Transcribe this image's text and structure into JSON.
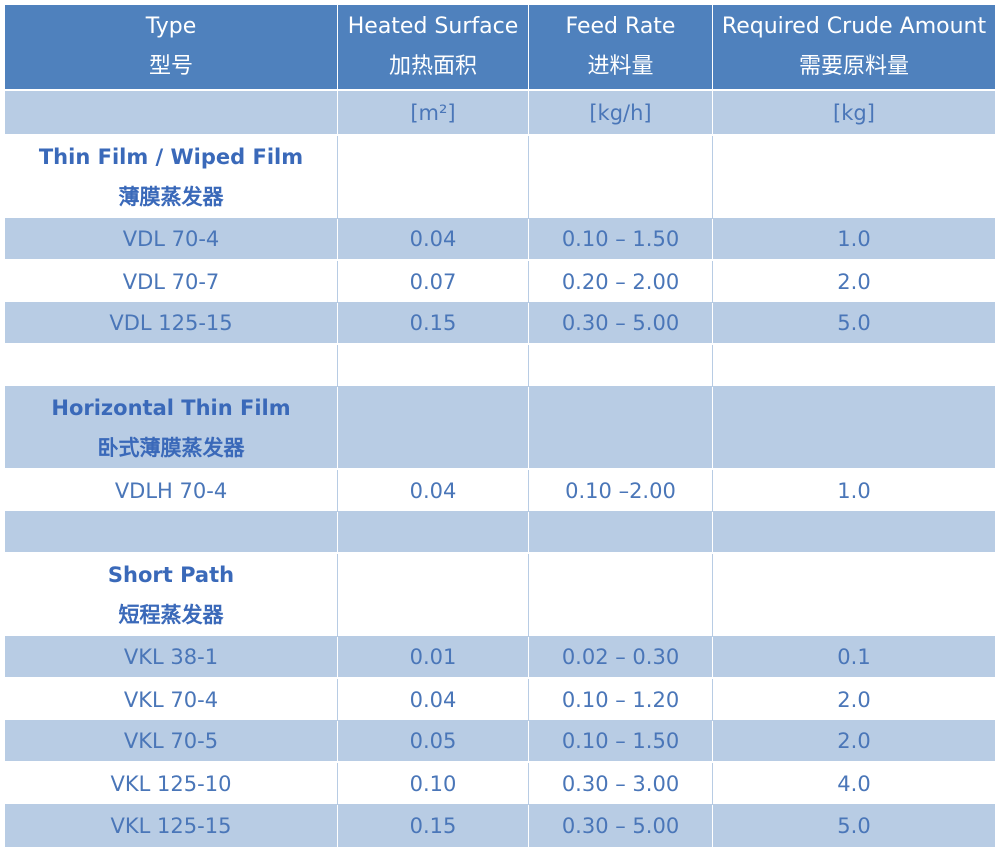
{
  "header": {
    "type_en": "Type",
    "type_zh": "型号",
    "surface_en": "Heated Surface",
    "surface_zh": "加热面积",
    "feed_en": "Feed Rate",
    "feed_zh": "进料量",
    "crude_en": "Required Crude Amount",
    "crude_zh": "需要原料量"
  },
  "units": {
    "type": "",
    "surface": "[m²]",
    "feed": "[kg/h]",
    "crude": "[kg]"
  },
  "sections": [
    {
      "title_en": "Thin Film / Wiped Film",
      "title_zh": "薄膜蒸发器",
      "rows": [
        {
          "type": "VDL 70-4",
          "surface": "0.04",
          "feed": "0.10 – 1.50",
          "crude": "1.0"
        },
        {
          "type": "VDL 70-7",
          "surface": "0.07",
          "feed": "0.20 – 2.00",
          "crude": "2.0"
        },
        {
          "type": "VDL 125-15",
          "surface": "0.15",
          "feed": "0.30 – 5.00",
          "crude": "5.0"
        }
      ]
    },
    {
      "title_en": "Horizontal Thin Film",
      "title_zh": "卧式薄膜蒸发器",
      "rows": [
        {
          "type": "VDLH 70-4",
          "surface": "0.04",
          "feed": "0.10 –2.00",
          "crude": "1.0"
        }
      ]
    },
    {
      "title_en": "Short Path",
      "title_zh": "短程蒸发器",
      "rows": [
        {
          "type": "VKL 38-1",
          "surface": "0.01",
          "feed": "0.02 – 0.30",
          "crude": "0.1"
        },
        {
          "type": "VKL 70-4",
          "surface": "0.04",
          "feed": "0.10 – 1.20",
          "crude": "2.0"
        },
        {
          "type": "VKL 70-5",
          "surface": "0.05",
          "feed": "0.10 – 1.50",
          "crude": "2.0"
        },
        {
          "type": "VKL 125-10",
          "surface": "0.10",
          "feed": "0.30 – 3.00",
          "crude": "4.0"
        },
        {
          "type": "VKL 125-15",
          "surface": "0.15",
          "feed": "0.30 – 5.00",
          "crude": "5.0"
        }
      ]
    }
  ],
  "colors": {
    "header_bg": "#4f81bd",
    "band_bg": "#b8cce4",
    "text": "#4a76b8"
  }
}
